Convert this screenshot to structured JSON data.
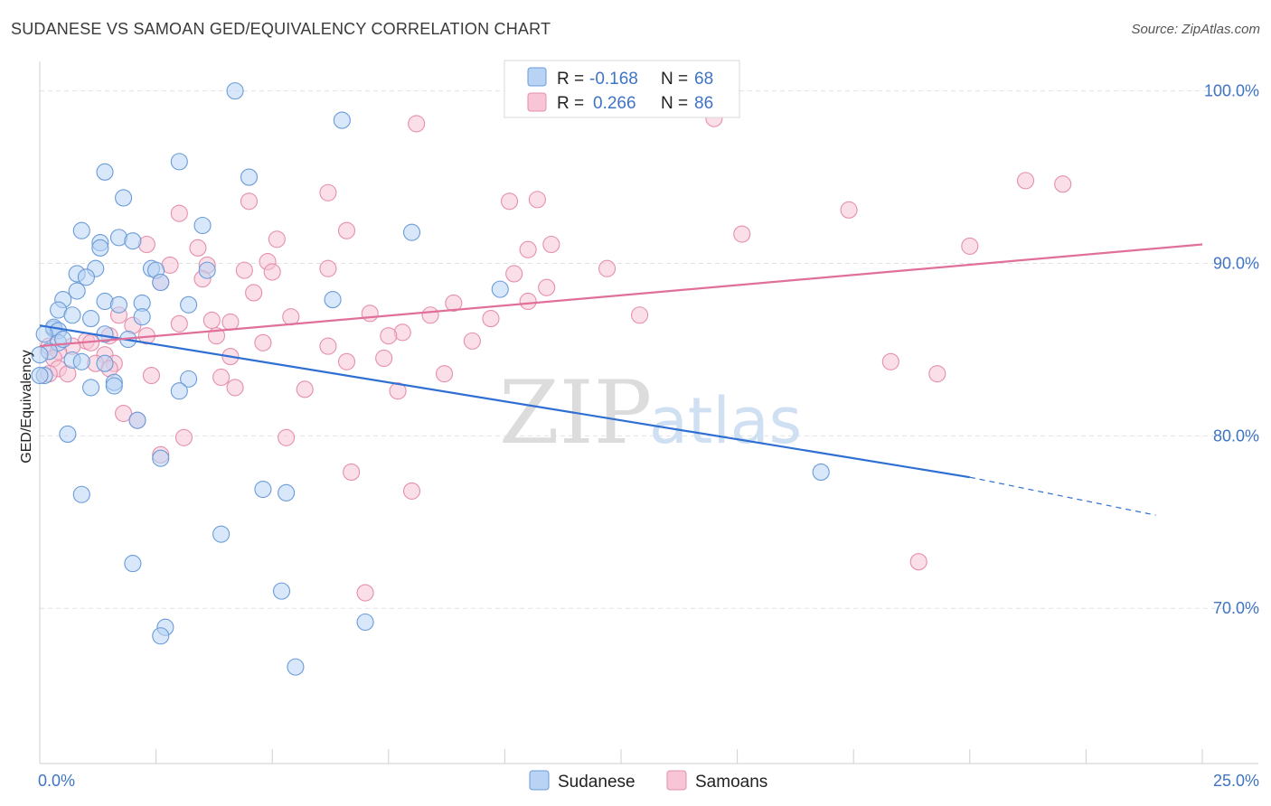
{
  "title": "SUDANESE VS SAMOAN GED/EQUIVALENCY CORRELATION CHART",
  "source": "Source: ZipAtlas.com",
  "watermark": {
    "zip": "ZIP",
    "atlas": "atlas"
  },
  "colors": {
    "sudanese_fill": "#b8d3f4",
    "sudanese_stroke": "#6a9bd8",
    "sudanese_line": "#2f6fd3",
    "samoan_fill": "#f7c5d6",
    "samoan_stroke": "#e58fab",
    "samoan_line": "#e0709a",
    "tick_text": "#3f74c5",
    "grid": "#e2e2e2"
  },
  "legend": {
    "r_label": "R =",
    "n_label": "N =",
    "rows": [
      {
        "series": "Sudanese",
        "r": "-0.168",
        "n": "68"
      },
      {
        "series": "Samoans",
        "r": "0.266",
        "n": "86"
      }
    ]
  },
  "chart_data": {
    "type": "scatter",
    "title": "SUDANESE VS SAMOAN GED/EQUIVALENCY CORRELATION CHART",
    "xlabel": "",
    "ylabel": "GED/Equivalency",
    "xlim": [
      0,
      25
    ],
    "ylim": [
      61,
      101.5
    ],
    "x_tick_labels": [
      "0.0%",
      "25.0%"
    ],
    "y_ticks": [
      70,
      80,
      90,
      100
    ],
    "y_tick_labels": [
      "70.0%",
      "80.0%",
      "90.0%",
      "100.0%"
    ],
    "grid": true,
    "legend_position": "top-center",
    "series": [
      {
        "name": "Sudanese",
        "trend": {
          "x0": 0.0,
          "y0": 86.4,
          "x1": 20.0,
          "y1": 77.6,
          "dash_to_x": 24.0,
          "dash_to_y": 75.4
        },
        "points": [
          [
            4.2,
            100.0
          ],
          [
            6.5,
            98.3
          ],
          [
            3.0,
            95.9
          ],
          [
            1.4,
            95.3
          ],
          [
            4.5,
            95.0
          ],
          [
            1.8,
            93.8
          ],
          [
            3.5,
            92.2
          ],
          [
            0.9,
            91.9
          ],
          [
            8.0,
            91.8
          ],
          [
            1.7,
            91.5
          ],
          [
            2.0,
            91.3
          ],
          [
            1.3,
            91.2
          ],
          [
            1.3,
            90.9
          ],
          [
            1.2,
            89.7
          ],
          [
            2.4,
            89.7
          ],
          [
            2.5,
            89.6
          ],
          [
            3.6,
            89.6
          ],
          [
            0.8,
            89.4
          ],
          [
            1.0,
            89.2
          ],
          [
            2.6,
            88.9
          ],
          [
            0.8,
            88.4
          ],
          [
            9.9,
            88.5
          ],
          [
            0.5,
            87.9
          ],
          [
            1.4,
            87.8
          ],
          [
            6.3,
            87.9
          ],
          [
            2.2,
            87.7
          ],
          [
            1.7,
            87.6
          ],
          [
            3.2,
            87.6
          ],
          [
            0.4,
            87.3
          ],
          [
            0.7,
            87.0
          ],
          [
            1.1,
            86.8
          ],
          [
            2.2,
            86.9
          ],
          [
            0.3,
            86.2
          ],
          [
            0.3,
            86.3
          ],
          [
            0.4,
            86.1
          ],
          [
            0.1,
            85.9
          ],
          [
            0.4,
            85.4
          ],
          [
            0.5,
            85.6
          ],
          [
            1.4,
            85.9
          ],
          [
            1.9,
            85.6
          ],
          [
            0.2,
            84.9
          ],
          [
            0.0,
            84.7
          ],
          [
            0.7,
            84.4
          ],
          [
            0.9,
            84.3
          ],
          [
            1.4,
            84.2
          ],
          [
            0.1,
            83.5
          ],
          [
            0.0,
            83.5
          ],
          [
            3.2,
            83.3
          ],
          [
            1.6,
            83.1
          ],
          [
            1.6,
            82.9
          ],
          [
            1.1,
            82.8
          ],
          [
            3.0,
            82.6
          ],
          [
            2.1,
            80.9
          ],
          [
            0.6,
            80.1
          ],
          [
            2.6,
            78.7
          ],
          [
            16.8,
            77.9
          ],
          [
            4.8,
            76.9
          ],
          [
            5.3,
            76.7
          ],
          [
            0.9,
            76.6
          ],
          [
            3.9,
            74.3
          ],
          [
            2.0,
            72.6
          ],
          [
            5.2,
            71.0
          ],
          [
            7.0,
            69.2
          ],
          [
            2.7,
            68.9
          ],
          [
            2.6,
            68.4
          ],
          [
            5.5,
            66.6
          ]
        ]
      },
      {
        "name": "Samoans",
        "trend": {
          "x0": 0.0,
          "y0": 85.2,
          "x1": 25.0,
          "y1": 91.1
        },
        "points": [
          [
            14.5,
            98.4
          ],
          [
            8.1,
            98.1
          ],
          [
            21.2,
            94.8
          ],
          [
            22.0,
            94.6
          ],
          [
            6.2,
            94.1
          ],
          [
            10.7,
            93.7
          ],
          [
            10.1,
            93.6
          ],
          [
            4.5,
            93.6
          ],
          [
            17.4,
            93.1
          ],
          [
            3.0,
            92.9
          ],
          [
            6.6,
            91.9
          ],
          [
            15.1,
            91.7
          ],
          [
            5.1,
            91.4
          ],
          [
            2.3,
            91.1
          ],
          [
            11.0,
            91.1
          ],
          [
            20.0,
            91.0
          ],
          [
            3.4,
            90.9
          ],
          [
            10.5,
            90.8
          ],
          [
            4.9,
            90.1
          ],
          [
            3.6,
            89.9
          ],
          [
            2.8,
            89.9
          ],
          [
            6.2,
            89.7
          ],
          [
            12.2,
            89.7
          ],
          [
            4.4,
            89.6
          ],
          [
            5.0,
            89.5
          ],
          [
            10.2,
            89.4
          ],
          [
            3.5,
            89.1
          ],
          [
            2.6,
            88.9
          ],
          [
            10.9,
            88.6
          ],
          [
            4.6,
            88.3
          ],
          [
            10.5,
            87.8
          ],
          [
            8.9,
            87.7
          ],
          [
            7.1,
            87.1
          ],
          [
            12.9,
            87.0
          ],
          [
            8.4,
            87.0
          ],
          [
            5.4,
            86.9
          ],
          [
            1.7,
            87.0
          ],
          [
            9.7,
            86.8
          ],
          [
            3.7,
            86.7
          ],
          [
            4.1,
            86.6
          ],
          [
            2.0,
            86.4
          ],
          [
            3.0,
            86.5
          ],
          [
            7.8,
            86.0
          ],
          [
            2.3,
            85.8
          ],
          [
            1.5,
            85.8
          ],
          [
            3.8,
            85.8
          ],
          [
            7.5,
            85.8
          ],
          [
            1.0,
            85.5
          ],
          [
            1.1,
            85.4
          ],
          [
            9.3,
            85.5
          ],
          [
            4.8,
            85.4
          ],
          [
            6.2,
            85.2
          ],
          [
            0.7,
            85.2
          ],
          [
            0.2,
            85.2
          ],
          [
            0.4,
            84.9
          ],
          [
            1.4,
            84.7
          ],
          [
            4.1,
            84.6
          ],
          [
            0.3,
            84.5
          ],
          [
            7.4,
            84.5
          ],
          [
            6.6,
            84.3
          ],
          [
            1.6,
            84.2
          ],
          [
            18.3,
            84.3
          ],
          [
            0.4,
            83.9
          ],
          [
            1.2,
            84.2
          ],
          [
            1.5,
            83.9
          ],
          [
            0.6,
            83.6
          ],
          [
            0.2,
            83.6
          ],
          [
            2.4,
            83.5
          ],
          [
            8.7,
            83.6
          ],
          [
            19.3,
            83.6
          ],
          [
            3.9,
            83.4
          ],
          [
            4.2,
            82.8
          ],
          [
            5.7,
            82.7
          ],
          [
            7.7,
            82.6
          ],
          [
            1.8,
            81.3
          ],
          [
            2.1,
            80.9
          ],
          [
            5.3,
            79.9
          ],
          [
            3.1,
            79.9
          ],
          [
            2.6,
            78.9
          ],
          [
            6.7,
            77.9
          ],
          [
            8.0,
            76.8
          ],
          [
            18.9,
            72.7
          ],
          [
            7.0,
            70.9
          ]
        ]
      }
    ]
  }
}
